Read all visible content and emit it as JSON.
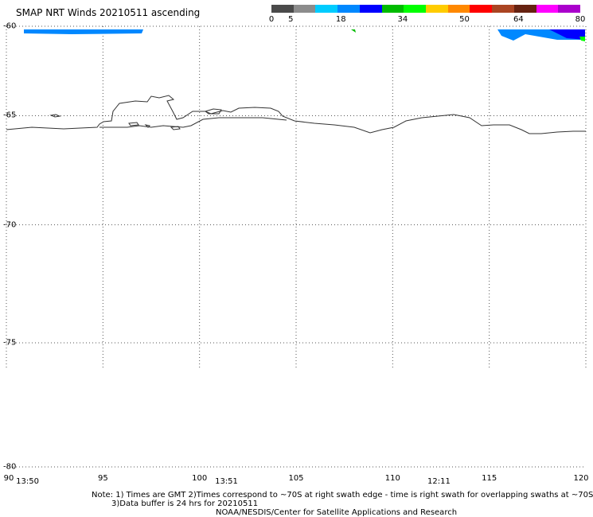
{
  "title": "SMAP NRT Winds 20210511 ascending",
  "colorbar": {
    "colors": [
      "#4a4a4a",
      "#8c8c8c",
      "#00ccff",
      "#0088ff",
      "#0000ff",
      "#00bb00",
      "#00ff00",
      "#ffcc00",
      "#ff8800",
      "#ff0000",
      "#aa4422",
      "#662211",
      "#ff00ff",
      "#aa00cc"
    ],
    "tick_labels": [
      "0",
      "5",
      "18",
      "34",
      "50",
      "64",
      "80"
    ],
    "tick_values": [
      0,
      5,
      18,
      34,
      50,
      64,
      80
    ]
  },
  "map": {
    "lat_labels": [
      "-60",
      "-65",
      "-70",
      "-75",
      "-80"
    ],
    "lat_values": [
      -60,
      -65,
      -70,
      -75,
      -80
    ],
    "lon_labels": [
      "90",
      "95",
      "100",
      "105",
      "110",
      "115",
      "120"
    ],
    "lon_values": [
      90,
      95,
      100,
      105,
      110,
      115,
      120
    ],
    "swath_times": [
      {
        "label": "13:50",
        "lon": 90.5
      },
      {
        "label": "13:51",
        "lon": 100.8
      },
      {
        "label": "12:11",
        "lon": 111.8
      }
    ],
    "swath_colors": {
      "light_blue": "#0088ff",
      "dark_blue": "#0000ff",
      "green": "#00ff00",
      "coast": "#333333"
    }
  },
  "notes": {
    "line1": "Note: 1) Times are GMT 2)Times correspond to ~70S at right swath edge - time is right swath for overlapping swaths at ~70S",
    "line2": "3)Data buffer is 24 hrs for 20210511",
    "line3": "NOAA/NESDIS/Center for Satellite Applications and Research"
  }
}
